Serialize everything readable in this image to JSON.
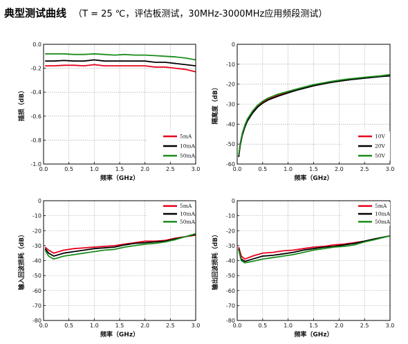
{
  "header": {
    "title": "典型测试曲线",
    "subtitle": "（T = 25 ℃，评估板测试，30MHz-3000MHz应用频段测试）"
  },
  "chart_data": [
    {
      "type": "line",
      "xlabel": "频率（GHz）",
      "ylabel": "插损（dB）",
      "xlim": [
        0,
        3.0
      ],
      "ylim": [
        -1.0,
        0.0
      ],
      "xticks": [
        "0.0",
        "0.5",
        "1.0",
        "1.5",
        "2.0",
        "2.5",
        "3.0"
      ],
      "yticks": [
        "0.0",
        "-0.2",
        "-0.4",
        "-0.6",
        "-0.8",
        "-1.0"
      ],
      "grid": true,
      "legend_position": "bottom-right",
      "x": [
        0.03,
        0.2,
        0.4,
        0.6,
        0.8,
        1.0,
        1.2,
        1.4,
        1.6,
        1.8,
        2.0,
        2.2,
        2.4,
        2.6,
        2.8,
        3.0
      ],
      "series": [
        {
          "name": "5mA",
          "color": "#e8001c",
          "values": [
            -0.18,
            -0.18,
            -0.175,
            -0.175,
            -0.18,
            -0.17,
            -0.18,
            -0.18,
            -0.18,
            -0.18,
            -0.18,
            -0.19,
            -0.19,
            -0.2,
            -0.21,
            -0.23
          ]
        },
        {
          "name": "10mA",
          "color": "#000000",
          "values": [
            -0.14,
            -0.14,
            -0.135,
            -0.14,
            -0.14,
            -0.13,
            -0.14,
            -0.14,
            -0.14,
            -0.14,
            -0.14,
            -0.15,
            -0.15,
            -0.16,
            -0.17,
            -0.18
          ]
        },
        {
          "name": "50mA",
          "color": "#1a8c1a",
          "values": [
            -0.08,
            -0.08,
            -0.08,
            -0.085,
            -0.085,
            -0.08,
            -0.085,
            -0.09,
            -0.085,
            -0.09,
            -0.09,
            -0.095,
            -0.1,
            -0.105,
            -0.115,
            -0.13
          ]
        }
      ]
    },
    {
      "type": "line",
      "xlabel": "频率（GHz）",
      "ylabel": "隔离度（dB）",
      "xlim": [
        0,
        3.0
      ],
      "ylim": [
        -60,
        0
      ],
      "xticks": [
        "0.0",
        "0.5",
        "1.0",
        "1.5",
        "2.0",
        "2.5",
        "3.0"
      ],
      "yticks": [
        "0",
        "-10",
        "-20",
        "-30",
        "-40",
        "-50",
        "-60"
      ],
      "grid": true,
      "legend_position": "bottom-right",
      "x": [
        0.03,
        0.06,
        0.1,
        0.15,
        0.2,
        0.3,
        0.4,
        0.5,
        0.6,
        0.8,
        1.0,
        1.2,
        1.5,
        1.8,
        2.0,
        2.2,
        2.5,
        2.8,
        3.0
      ],
      "series": [
        {
          "name": "10V",
          "color": "#e8001c",
          "values": [
            -56,
            -50,
            -45,
            -41,
            -38,
            -34,
            -31,
            -29,
            -27.5,
            -25.5,
            -24,
            -22.5,
            -20.5,
            -19,
            -18.2,
            -17.5,
            -16.7,
            -16,
            -15.5
          ]
        },
        {
          "name": "20V",
          "color": "#000000",
          "values": [
            -56.5,
            -50.5,
            -45.5,
            -41.5,
            -38.5,
            -34.5,
            -31.5,
            -29.5,
            -28,
            -26,
            -24.3,
            -22.8,
            -20.8,
            -19.3,
            -18.5,
            -17.8,
            -17,
            -16.2,
            -15.8
          ]
        },
        {
          "name": "50V",
          "color": "#1a8c1a",
          "values": [
            -55.5,
            -49.5,
            -44.5,
            -40.5,
            -37.5,
            -33.5,
            -30.5,
            -28.5,
            -27,
            -25,
            -23.6,
            -22.2,
            -20.2,
            -18.8,
            -18,
            -17.3,
            -16.5,
            -15.8,
            -15.2
          ]
        }
      ]
    },
    {
      "type": "line",
      "xlabel": "频率（GHz）",
      "ylabel": "输入回波损耗（dB）",
      "xlim": [
        0,
        3.0
      ],
      "ylim": [
        -80,
        0
      ],
      "xticks": [
        "0.0",
        "0.5",
        "1.0",
        "1.5",
        "2.0",
        "2.5",
        "3.0"
      ],
      "yticks": [
        "0",
        "-10",
        "-20",
        "-30",
        "-40",
        "-50",
        "-60",
        "-70",
        "-80"
      ],
      "grid": true,
      "legend_position": "top-right",
      "x": [
        0.03,
        0.1,
        0.2,
        0.4,
        0.6,
        0.8,
        1.0,
        1.2,
        1.4,
        1.6,
        1.8,
        2.0,
        2.2,
        2.4,
        2.6,
        2.8,
        3.0
      ],
      "series": [
        {
          "name": "5mA",
          "color": "#e8001c",
          "values": [
            -31,
            -33,
            -35,
            -33,
            -32,
            -31.5,
            -31,
            -30.5,
            -30,
            -29,
            -28,
            -27,
            -27,
            -26.5,
            -25,
            -24,
            -23
          ]
        },
        {
          "name": "10mA",
          "color": "#000000",
          "values": [
            -32,
            -35,
            -37,
            -35,
            -34,
            -33,
            -32,
            -31.5,
            -31,
            -29.5,
            -28.5,
            -28,
            -27.5,
            -27,
            -25.5,
            -24,
            -22.5
          ]
        },
        {
          "name": "50mA",
          "color": "#1a8c1a",
          "values": [
            -33,
            -37,
            -39,
            -37,
            -36,
            -35,
            -34,
            -33,
            -32.5,
            -31,
            -30,
            -29,
            -28.5,
            -27.5,
            -26,
            -24,
            -22
          ]
        }
      ]
    },
    {
      "type": "line",
      "xlabel": "频率（GHz）",
      "ylabel": "输出回波损耗（dB）",
      "xlim": [
        0,
        3.0
      ],
      "ylim": [
        -80,
        0
      ],
      "xticks": [
        "0.0",
        "0.5",
        "1.0",
        "1.5",
        "2.0",
        "2.5",
        "3.0"
      ],
      "yticks": [
        "0",
        "-10",
        "-20",
        "-30",
        "-40",
        "-50",
        "-60",
        "-70",
        "-80"
      ],
      "grid": true,
      "legend_position": "top-right",
      "x": [
        0.03,
        0.08,
        0.15,
        0.3,
        0.5,
        0.7,
        0.9,
        1.1,
        1.3,
        1.5,
        1.7,
        1.9,
        2.1,
        2.3,
        2.5,
        2.7,
        3.0
      ],
      "series": [
        {
          "name": "5mA",
          "color": "#e8001c",
          "values": [
            -31,
            -37,
            -39,
            -37,
            -35,
            -34.5,
            -33.5,
            -33,
            -32,
            -31,
            -30.5,
            -29.5,
            -29,
            -28,
            -27,
            -25.5,
            -23.5
          ]
        },
        {
          "name": "10mA",
          "color": "#000000",
          "values": [
            -32,
            -39,
            -40.5,
            -39,
            -37,
            -36.5,
            -35.5,
            -34.5,
            -33,
            -32,
            -31,
            -30.5,
            -29.5,
            -28.5,
            -27,
            -25.5,
            -23.5
          ]
        },
        {
          "name": "50mA",
          "color": "#1a8c1a",
          "values": [
            -33,
            -40,
            -41.5,
            -40.5,
            -39,
            -38,
            -37,
            -36,
            -34.5,
            -33,
            -32,
            -31,
            -30.5,
            -29.5,
            -27.5,
            -26,
            -23.5
          ]
        }
      ]
    }
  ]
}
